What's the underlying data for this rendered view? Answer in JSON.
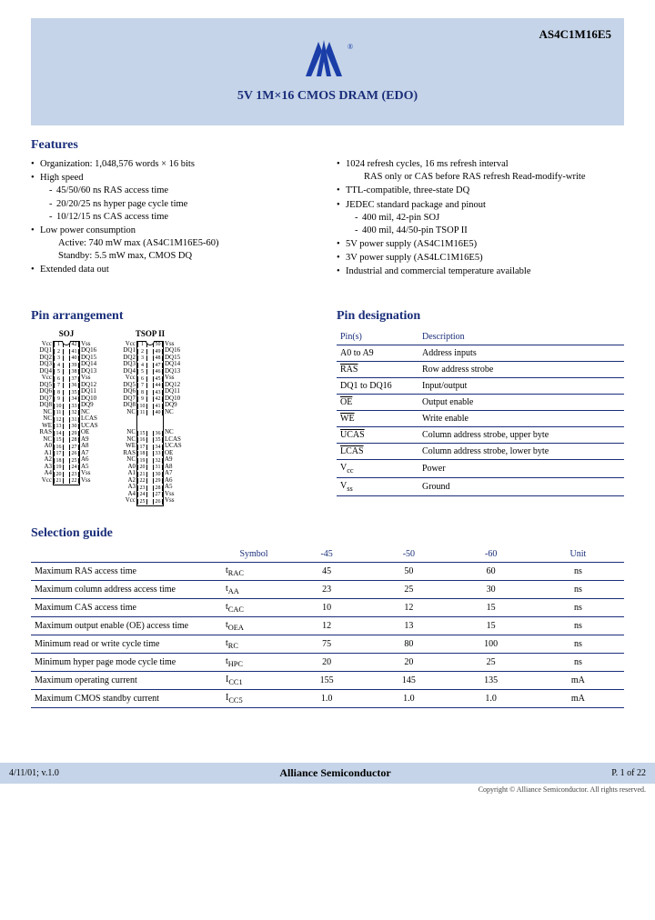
{
  "header": {
    "part_number": "AS4C1M16E5",
    "title": "5V 1M×16 CMOS DRAM (EDO)"
  },
  "features": {
    "heading": "Features",
    "left": [
      {
        "text": "Organization: 1,048,576 words × 16 bits"
      },
      {
        "text": "High speed",
        "sub": [
          "45/50/60 ns RAS access time",
          "20/20/25 ns hyper page cycle time",
          "10/12/15 ns CAS access time"
        ]
      },
      {
        "text": "Low power consumption",
        "sub": [],
        "cont": [
          "Active:   740 mW max (AS4C1M16E5-60)",
          "Standby:  5.5 mW max, CMOS DQ"
        ]
      },
      {
        "text": "Extended data out"
      }
    ],
    "right": [
      {
        "text": "1024 refresh cycles, 16 ms refresh interval",
        "cont": [
          "RAS only or CAS before RAS refresh Read-modify-write"
        ]
      },
      {
        "text": "TTL-compatible, three-state DQ"
      },
      {
        "text": "JEDEC standard package and pinout",
        "sub": [
          "400 mil, 42-pin SOJ",
          "400 mil, 44/50-pin TSOP II"
        ]
      },
      {
        "text": "5V power supply (AS4C1M16E5)"
      },
      {
        "text": "3V power supply (AS4LC1M16E5)"
      },
      {
        "text": "Industrial and commercial temperature available"
      }
    ]
  },
  "pin_arrangement": {
    "heading": "Pin arrangement",
    "soj": {
      "label": "SOJ",
      "left": [
        "Vcc",
        "DQ1",
        "DQ2",
        "DQ3",
        "DQ4",
        "Vcc",
        "DQ5",
        "DQ6",
        "DQ7",
        "DQ8",
        "NC",
        "NC",
        "WE",
        "RAS",
        "NC",
        "A0",
        "A1",
        "A2",
        "A3",
        "A4",
        "Vcc"
      ],
      "right": [
        "Vss",
        "DQ16",
        "DQ15",
        "DQ14",
        "DQ13",
        "Vss",
        "DQ12",
        "DQ11",
        "DQ10",
        "DQ9",
        "NC",
        "LCAS",
        "UCAS",
        "OE",
        "A9",
        "A8",
        "A7",
        "A6",
        "A5",
        "Vss",
        "Vss"
      ],
      "n_left": [
        1,
        2,
        3,
        4,
        5,
        6,
        7,
        8,
        9,
        10,
        11,
        12,
        13,
        14,
        15,
        16,
        17,
        18,
        19,
        20,
        21
      ],
      "n_right": [
        42,
        41,
        40,
        39,
        38,
        37,
        36,
        35,
        34,
        33,
        32,
        31,
        30,
        29,
        28,
        27,
        26,
        25,
        24,
        23,
        22
      ]
    },
    "tsop": {
      "label": "TSOP II",
      "left": [
        "Vcc",
        "DQ1",
        "DQ2",
        "DQ3",
        "DQ4",
        "Vcc",
        "DQ5",
        "DQ6",
        "DQ7",
        "DQ8",
        "NC",
        "",
        "",
        "NC",
        "NC",
        "WE",
        "RAS",
        "NC",
        "A0",
        "A1",
        "A2",
        "A3",
        "A4",
        "Vcc"
      ],
      "right": [
        "Vss",
        "DQ16",
        "DQ15",
        "DQ14",
        "DQ13",
        "Vss",
        "DQ12",
        "DQ11",
        "DQ10",
        "DQ9",
        "NC",
        "",
        "",
        "NC",
        "LCAS",
        "UCAS",
        "OE",
        "A9",
        "A8",
        "A7",
        "A6",
        "A5",
        "Vss",
        "Vss"
      ],
      "n_left": [
        1,
        2,
        3,
        4,
        5,
        6,
        7,
        8,
        9,
        10,
        11,
        "",
        "",
        15,
        16,
        17,
        18,
        19,
        20,
        21,
        22,
        23,
        24,
        25
      ],
      "n_right": [
        50,
        49,
        48,
        47,
        46,
        45,
        44,
        43,
        42,
        41,
        40,
        "",
        "",
        36,
        35,
        34,
        33,
        32,
        31,
        30,
        29,
        28,
        27,
        26
      ]
    }
  },
  "pin_designation": {
    "heading": "Pin designation",
    "headers": [
      "Pin(s)",
      "Description"
    ],
    "rows": [
      [
        "A0 to A9",
        "Address inputs"
      ],
      [
        "RAS",
        "Row address strobe"
      ],
      [
        "DQ1 to DQ16",
        "Input/output"
      ],
      [
        "OE",
        "Output enable"
      ],
      [
        "WE",
        "Write enable"
      ],
      [
        "UCAS",
        "Column address strobe, upper byte"
      ],
      [
        "LCAS",
        "Column address strobe, lower byte"
      ],
      [
        "Vcc",
        "Power"
      ],
      [
        "Vss",
        "Ground"
      ]
    ],
    "overline_rows": [
      1,
      3,
      4,
      5,
      6
    ]
  },
  "selection_guide": {
    "heading": "Selection guide",
    "headers": [
      "",
      "Symbol",
      "-45",
      "-50",
      "-60",
      "Unit"
    ],
    "rows": [
      [
        "Maximum RAS access time",
        "t_RAC",
        "45",
        "50",
        "60",
        "ns"
      ],
      [
        "Maximum column address access time",
        "t_AA",
        "23",
        "25",
        "30",
        "ns"
      ],
      [
        "Maximum CAS access time",
        "t_CAC",
        "10",
        "12",
        "15",
        "ns"
      ],
      [
        "Maximum output enable (OE) access time",
        "t_OEA",
        "12",
        "13",
        "15",
        "ns"
      ],
      [
        "Minimum read or write cycle time",
        "t_RC",
        "75",
        "80",
        "100",
        "ns"
      ],
      [
        "Minimum hyper page mode cycle time",
        "t_HPC",
        "20",
        "20",
        "25",
        "ns"
      ],
      [
        "Maximum operating current",
        "I_CC1",
        "155",
        "145",
        "135",
        "mA"
      ],
      [
        "Maximum CMOS standby current",
        "I_CC5",
        "1.0",
        "1.0",
        "1.0",
        "mA"
      ]
    ]
  },
  "footer": {
    "left": "4/11/01; v.1.0",
    "mid": "Alliance Semiconductor",
    "right": "P. 1 of 22",
    "copyright": "Copyright © Alliance Semiconductor. All rights reserved."
  },
  "colors": {
    "banner": "#c5d4e8",
    "heading": "#1a2e7a",
    "logo_fill": "#1a3da8"
  }
}
